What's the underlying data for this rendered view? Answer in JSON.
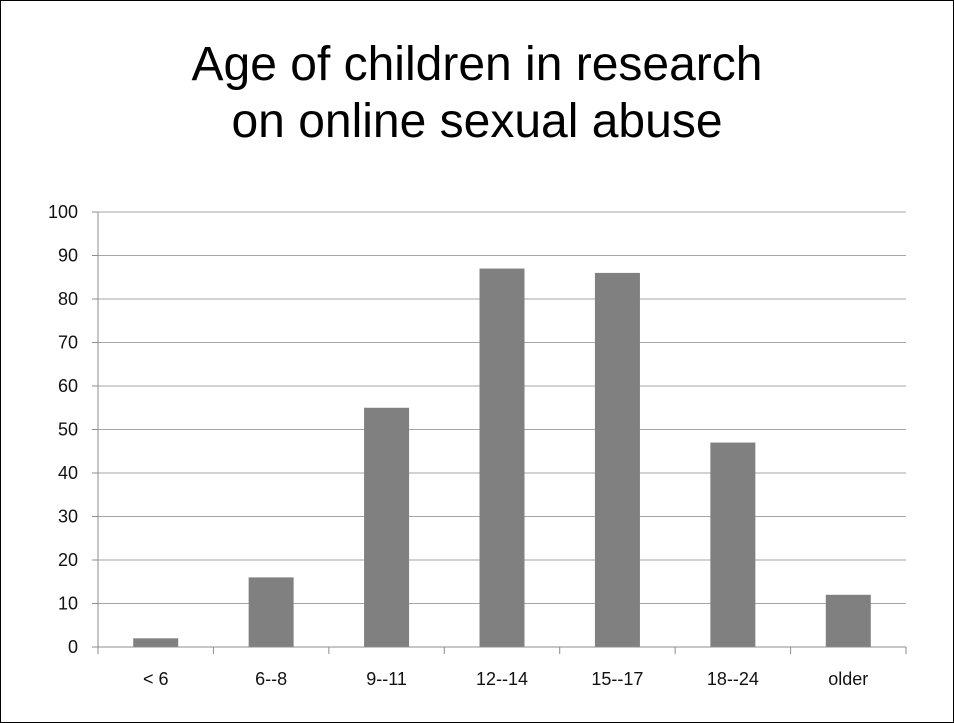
{
  "chart_data": {
    "type": "bar",
    "title_lines": [
      "Age of children in research",
      "on online sexual abuse"
    ],
    "categories": [
      "< 6",
      "6--8",
      "9--11",
      "12--14",
      "15--17",
      "18--24",
      "older"
    ],
    "values": [
      2,
      16,
      55,
      87,
      86,
      47,
      12
    ],
    "ylim": [
      0,
      100
    ],
    "yticks": [
      "0",
      "10",
      "20",
      "30",
      "40",
      "50",
      "60",
      "70",
      "80",
      "90",
      "100"
    ],
    "grid": true,
    "legend": "none",
    "colors": {
      "bar": "#808080",
      "grid": "#a6a6a6",
      "axis": "#8c8c8c"
    }
  }
}
